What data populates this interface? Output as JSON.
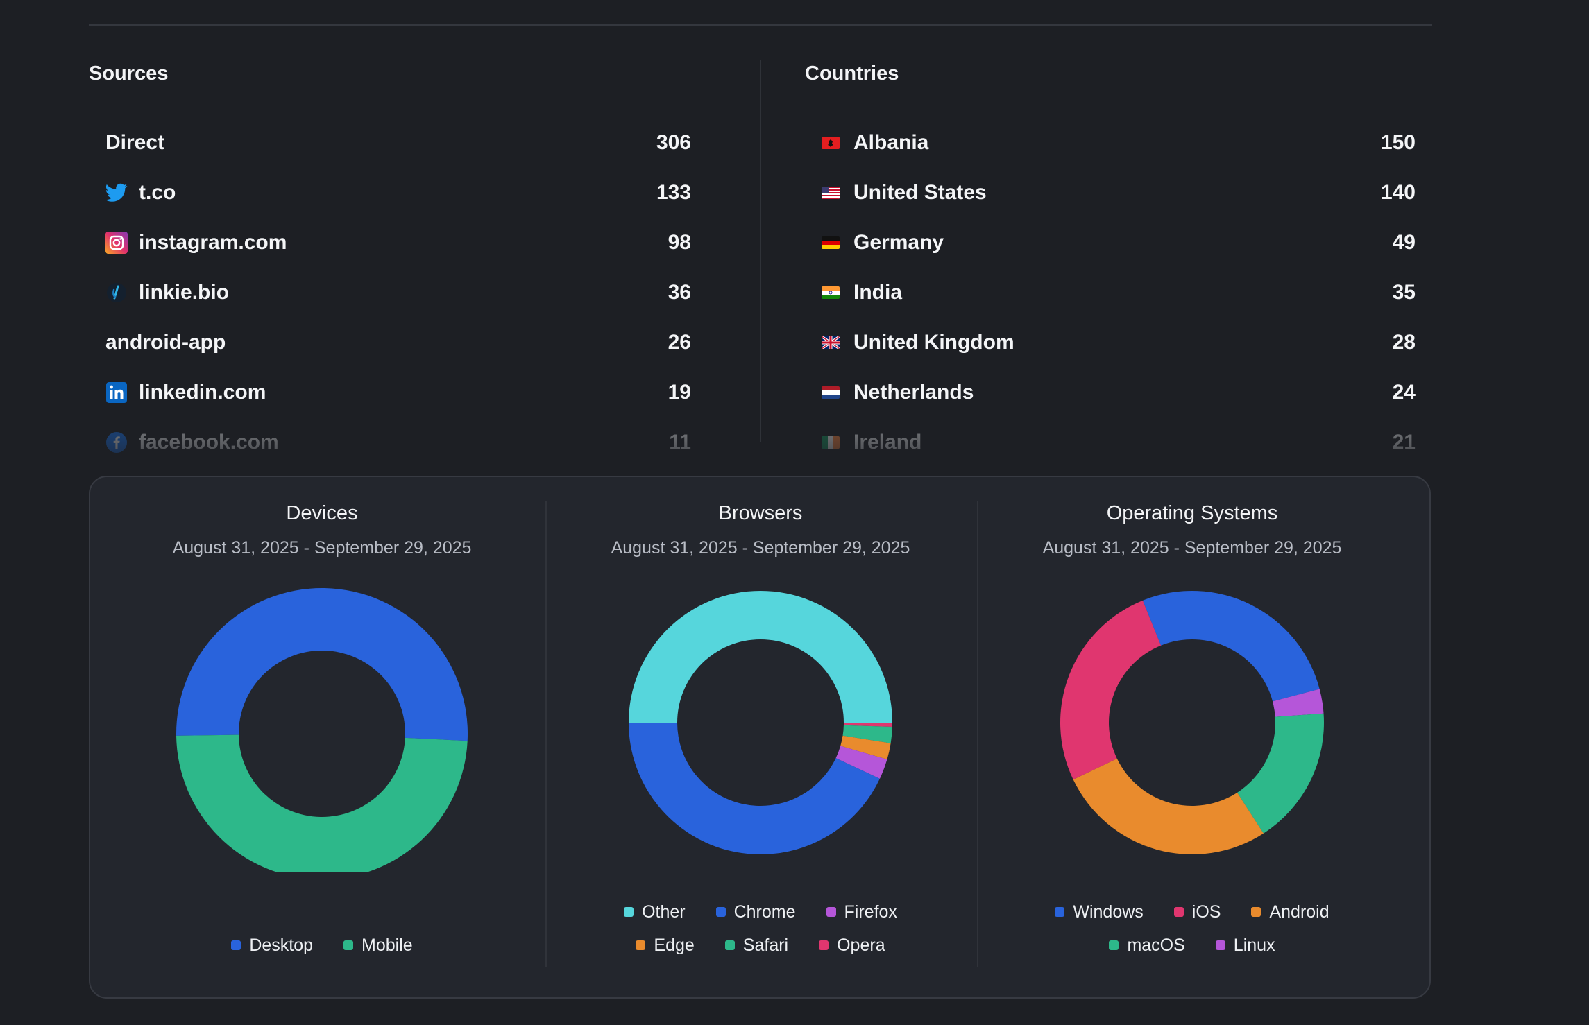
{
  "sources": {
    "title": "Sources",
    "items": [
      {
        "label": "Direct",
        "count": "306",
        "icon": "none"
      },
      {
        "label": "t.co",
        "count": "133",
        "icon": "twitter-icon"
      },
      {
        "label": "instagram.com",
        "count": "98",
        "icon": "instagram-icon"
      },
      {
        "label": "linkie.bio",
        "count": "36",
        "icon": "linkie-icon"
      },
      {
        "label": "android-app",
        "count": "26",
        "icon": "none"
      },
      {
        "label": "linkedin.com",
        "count": "19",
        "icon": "linkedin-icon"
      },
      {
        "label": "facebook.com",
        "count": "11",
        "icon": "facebook-icon"
      }
    ]
  },
  "countries": {
    "title": "Countries",
    "items": [
      {
        "label": "Albania",
        "count": "150",
        "flag": "albania-flag-icon"
      },
      {
        "label": "United States",
        "count": "140",
        "flag": "us-flag-icon"
      },
      {
        "label": "Germany",
        "count": "49",
        "flag": "germany-flag-icon"
      },
      {
        "label": "India",
        "count": "35",
        "flag": "india-flag-icon"
      },
      {
        "label": "United Kingdom",
        "count": "28",
        "flag": "uk-flag-icon"
      },
      {
        "label": "Netherlands",
        "count": "24",
        "flag": "netherlands-flag-icon"
      },
      {
        "label": "Ireland",
        "count": "21",
        "flag": "ireland-flag-icon"
      }
    ]
  },
  "charts": {
    "devices": {
      "title": "Devices",
      "subtitle": "August 31, 2025 - September 29, 2025"
    },
    "browsers": {
      "title": "Browsers",
      "subtitle": "August 31, 2025 - September 29, 2025"
    },
    "os": {
      "title": "Operating Systems",
      "subtitle": "August 31, 2025 - September 29, 2025"
    }
  },
  "chart_data": [
    {
      "type": "pie",
      "title": "Devices",
      "categories": [
        "Desktop",
        "Mobile"
      ],
      "values": [
        51,
        49
      ],
      "colors": [
        "#2963dc",
        "#2db88a"
      ],
      "legend": "bottom"
    },
    {
      "type": "pie",
      "title": "Browsers",
      "categories": [
        "Other",
        "Chrome",
        "Firefox",
        "Edge",
        "Safari",
        "Opera"
      ],
      "values": [
        50,
        43,
        2.5,
        2,
        2,
        0.5
      ],
      "colors": [
        "#56d6dc",
        "#2963dc",
        "#b556d9",
        "#e98b2d",
        "#2db88a",
        "#e0366f"
      ],
      "legend": "bottom"
    },
    {
      "type": "pie",
      "title": "Operating Systems",
      "categories": [
        "Windows",
        "iOS",
        "Android",
        "macOS",
        "Linux"
      ],
      "values": [
        27,
        26,
        27,
        17,
        3
      ],
      "colors": [
        "#2963dc",
        "#e0366f",
        "#e98b2d",
        "#2db88a",
        "#b556d9"
      ],
      "legend": "bottom"
    }
  ]
}
